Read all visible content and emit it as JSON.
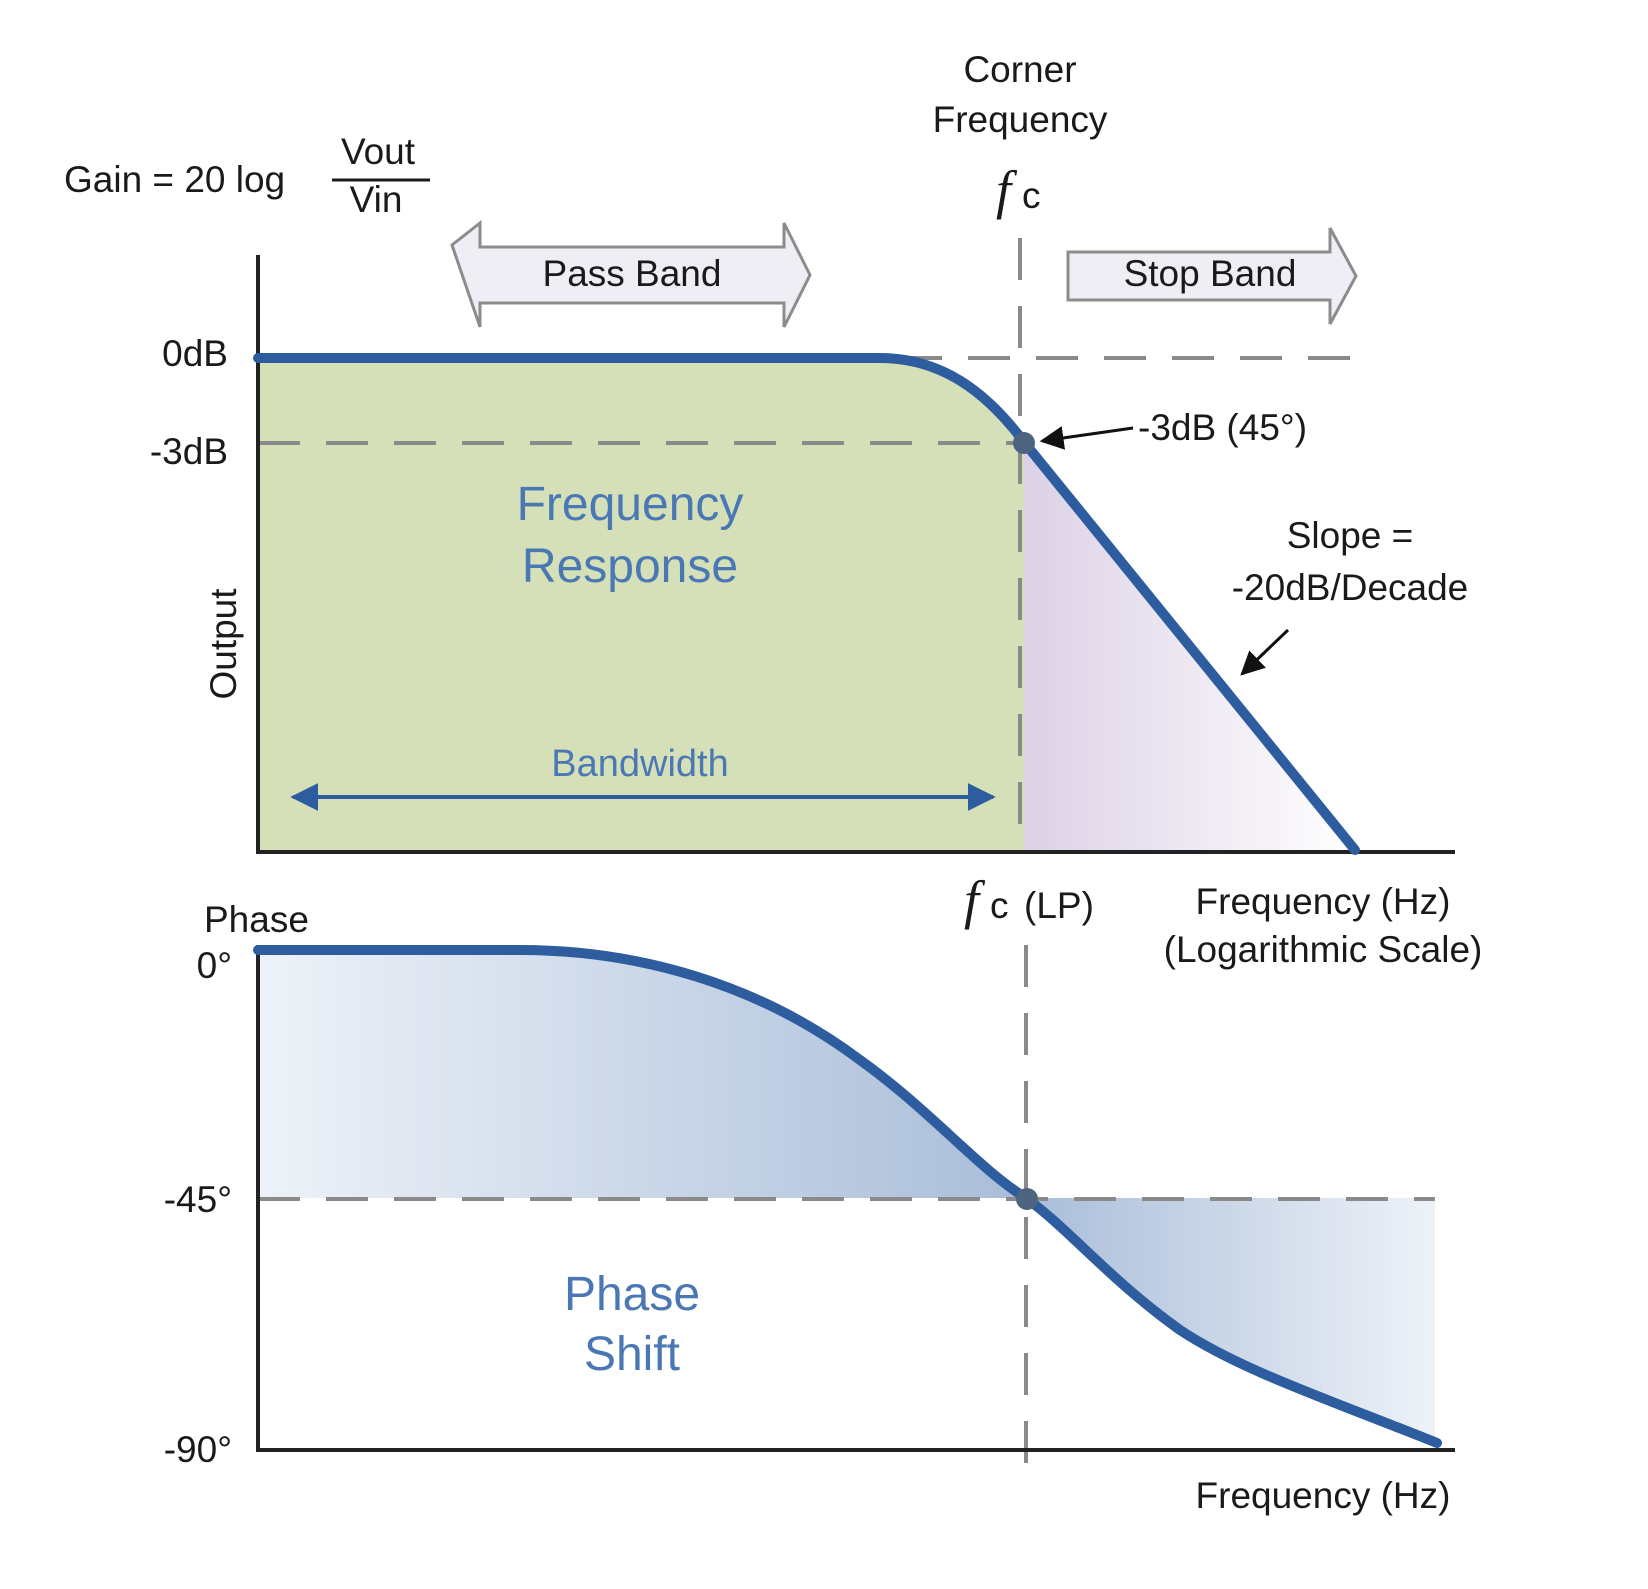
{
  "colors": {
    "curve": "#2e5d9f",
    "passband_fill": "#d5e0b8",
    "stopband_fill": "#dcd1e6",
    "phase_fill": "#a8bcd8",
    "dashes": "#8a8a8a",
    "axis": "#222222",
    "arrow_fill": "#efeef5",
    "arrow_stroke": "#8c8c8c"
  },
  "gain_formula": {
    "prefix": "Gain = 20 log",
    "numerator": "Vout",
    "denominator": "Vin"
  },
  "corner": {
    "line1": "Corner",
    "line2": "Frequency",
    "symbol": "f",
    "subscript": "c"
  },
  "bands": {
    "pass": "Pass Band",
    "stop": "Stop Band"
  },
  "magnitude": {
    "tick_0db": "0dB",
    "tick_3db": "-3dB",
    "ylabel": "Output",
    "area_label_1": "Frequency",
    "area_label_2": "Response",
    "bandwidth": "Bandwidth",
    "point_label": "-3dB (45°)",
    "slope_1": "Slope =",
    "slope_2": "-20dB/Decade",
    "fc_lp_symbol": "f",
    "fc_lp_sub": "c",
    "fc_lp_suffix": "(LP)",
    "xlabel_1": "Frequency (Hz)",
    "xlabel_2": "(Logarithmic Scale)"
  },
  "phase": {
    "ylabel": "Phase",
    "tick_0": "0°",
    "tick_45": "-45°",
    "tick_90": "-90°",
    "area_label_1": "Phase",
    "area_label_2": "Shift",
    "xlabel": "Frequency (Hz)"
  }
}
